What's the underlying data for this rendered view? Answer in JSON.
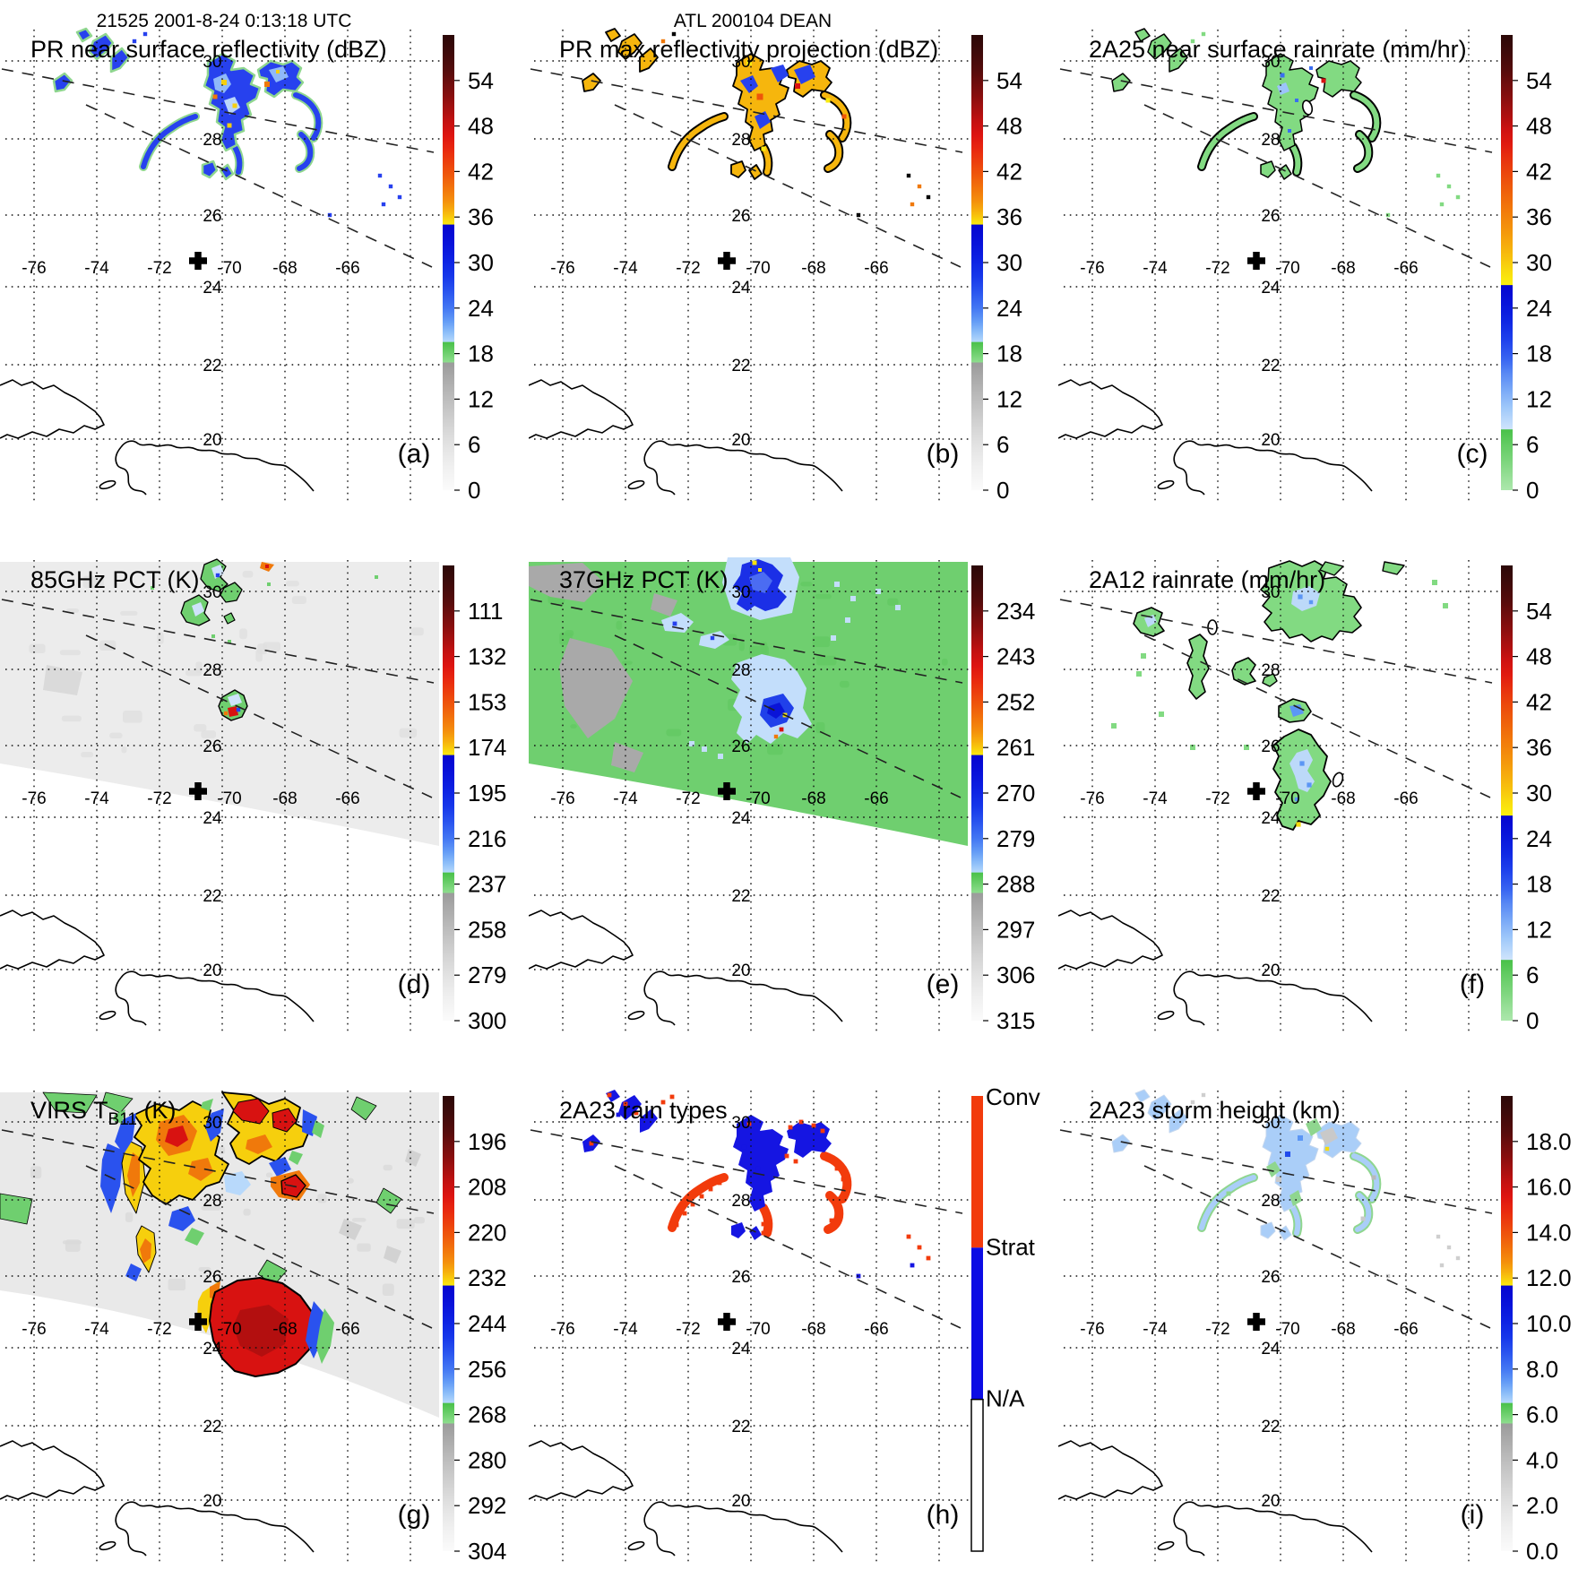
{
  "header": {
    "left": "21525 2001-8-24 0:13:18 UTC",
    "center": "ATL 200104 DEAN"
  },
  "map": {
    "lon_labels": [
      "-76",
      "-74",
      "-72",
      "-70",
      "-68",
      "-66"
    ],
    "lat_labels": [
      "30",
      "28",
      "26",
      "24",
      "22",
      "20"
    ],
    "marker": "storm-center-cross"
  },
  "panels": [
    {
      "letter": "(a)",
      "title": "PR near surface reflectivity (dBZ)",
      "cbar": "reflectivity",
      "ticks": [
        "54",
        "48",
        "42",
        "36",
        "30",
        "24",
        "18",
        "12",
        "6",
        "0"
      ]
    },
    {
      "letter": "(b)",
      "title": "PR max reflectivity projection (dBZ)",
      "cbar": "reflectivity",
      "ticks": [
        "54",
        "48",
        "42",
        "36",
        "30",
        "24",
        "18",
        "12",
        "6",
        "0"
      ]
    },
    {
      "letter": "(c)",
      "title": "2A25 near surface rainrate (mm/hr)",
      "cbar": "rainrate",
      "ticks": [
        "54",
        "48",
        "42",
        "36",
        "30",
        "24",
        "18",
        "12",
        "6",
        "0"
      ]
    },
    {
      "letter": "(d)",
      "title": "85GHz PCT (K)",
      "cbar": "reflectivity",
      "ticks": [
        "111",
        "132",
        "153",
        "174",
        "195",
        "216",
        "237",
        "258",
        "279",
        "300"
      ]
    },
    {
      "letter": "(e)",
      "title": "37GHz PCT (K)",
      "cbar": "reflectivity",
      "ticks": [
        "234",
        "243",
        "252",
        "261",
        "270",
        "279",
        "288",
        "297",
        "306",
        "315"
      ]
    },
    {
      "letter": "(f)",
      "title": "2A12 rainrate (mm/hr)",
      "cbar": "rainrate",
      "ticks": [
        "54",
        "48",
        "42",
        "36",
        "30",
        "24",
        "18",
        "12",
        "6",
        "0"
      ]
    },
    {
      "letter": "(g)",
      "title": "VIRS T",
      "title_sub": "B11",
      "title_suffix": " (K)",
      "cbar": "reflectivity",
      "ticks": [
        "196",
        "208",
        "220",
        "232",
        "244",
        "256",
        "268",
        "280",
        "292",
        "304"
      ]
    },
    {
      "letter": "(h)",
      "title": "2A23 rain types",
      "cbar": "raintype",
      "ticks": []
    },
    {
      "letter": "(i)",
      "title": "2A23 storm height (km)",
      "cbar": "reflectivity",
      "ticks": [
        "18.0",
        "16.0",
        "14.0",
        "12.0",
        "10.0",
        "8.0",
        "6.0",
        "4.0",
        "2.0",
        "0.0"
      ]
    }
  ],
  "colorbars": {
    "reflectivity": {
      "stops": [
        [
          0,
          "#2b0807"
        ],
        [
          4,
          "#3f0a0a"
        ],
        [
          8,
          "#560c0c"
        ],
        [
          10,
          "#690d0d"
        ],
        [
          13,
          "#840e0e"
        ],
        [
          16,
          "#a31010"
        ],
        [
          19,
          "#c41111"
        ],
        [
          22,
          "#dd1411"
        ],
        [
          25,
          "#e8270f"
        ],
        [
          28,
          "#ec400d"
        ],
        [
          31,
          "#ef5a0c"
        ],
        [
          34,
          "#f2770b"
        ],
        [
          36.5,
          "#f4900c"
        ],
        [
          38.5,
          "#f6ad0d"
        ],
        [
          40,
          "#f8c90d"
        ],
        [
          41.6,
          "#f9e90f"
        ],
        [
          41.7,
          "#0505cf"
        ],
        [
          45,
          "#070fd8"
        ],
        [
          49,
          "#0c20e2"
        ],
        [
          53,
          "#1637ea"
        ],
        [
          56.5,
          "#2a55ef"
        ],
        [
          60,
          "#4377f3"
        ],
        [
          63,
          "#659df6"
        ],
        [
          65.5,
          "#8fc0f9"
        ],
        [
          67.4,
          "#b5d8fb"
        ],
        [
          67.5,
          "#49c149"
        ],
        [
          69.5,
          "#67cd67"
        ],
        [
          71.9,
          "#8edd8e"
        ],
        [
          72,
          "#9b9b9b"
        ],
        [
          75,
          "#a8a8a8"
        ],
        [
          79,
          "#b9b9b9"
        ],
        [
          83,
          "#c9c9c9"
        ],
        [
          87,
          "#d8d8d8"
        ],
        [
          91,
          "#e5e5e5"
        ],
        [
          95,
          "#f0f0f0"
        ],
        [
          100,
          "#fbfbfb"
        ]
      ]
    },
    "rainrate": {
      "stops": [
        [
          0,
          "#2b0807"
        ],
        [
          4,
          "#3f0a0a"
        ],
        [
          8,
          "#560c0c"
        ],
        [
          10,
          "#690d0d"
        ],
        [
          14,
          "#8a0f0f"
        ],
        [
          18,
          "#b01010"
        ],
        [
          21,
          "#cf1211"
        ],
        [
          24,
          "#e01a10"
        ],
        [
          27,
          "#e7300e"
        ],
        [
          31,
          "#ec4b0c"
        ],
        [
          35,
          "#ef640b"
        ],
        [
          39,
          "#f27d0b"
        ],
        [
          43,
          "#f4960c"
        ],
        [
          46,
          "#f6ab0d"
        ],
        [
          49,
          "#f7c20d"
        ],
        [
          52,
          "#f9dc0e"
        ],
        [
          54.9,
          "#faf00f"
        ],
        [
          55,
          "#0505cf"
        ],
        [
          59,
          "#0814da"
        ],
        [
          63,
          "#0f27e3"
        ],
        [
          67,
          "#1e41ec"
        ],
        [
          71,
          "#3763f1"
        ],
        [
          74,
          "#5585f4"
        ],
        [
          78,
          "#7aa9f7"
        ],
        [
          82,
          "#a0c9fa"
        ],
        [
          86.6,
          "#cfe4fc"
        ],
        [
          86.7,
          "#49c149"
        ],
        [
          90,
          "#63cc63"
        ],
        [
          94,
          "#7fd67f"
        ],
        [
          97,
          "#97df97"
        ],
        [
          100,
          "#ace7ac"
        ]
      ]
    },
    "raintype": {
      "segments": [
        {
          "label": "Conv",
          "color": "#f23b0c"
        },
        {
          "label": "Strat",
          "color": "#0c0ce4"
        },
        {
          "label": "N/A",
          "color": "#ffffff"
        }
      ]
    }
  },
  "palette": {
    "green": "#6fcf6f",
    "green_light": "#82da82",
    "green_fringe": "#8fd68f",
    "blue": "#2741ee",
    "blue_strong": "#1515e2",
    "blue_mid": "#5b96f5",
    "blue_pale": "#c3defb",
    "yellow": "#f6cf0d",
    "orange": "#f0790b",
    "orange_red": "#ee5509",
    "red": "#d81211",
    "dark_red": "#b30f0f",
    "gray": "#a9a9a9",
    "gray_light": "#ececec",
    "black": "#000000"
  }
}
